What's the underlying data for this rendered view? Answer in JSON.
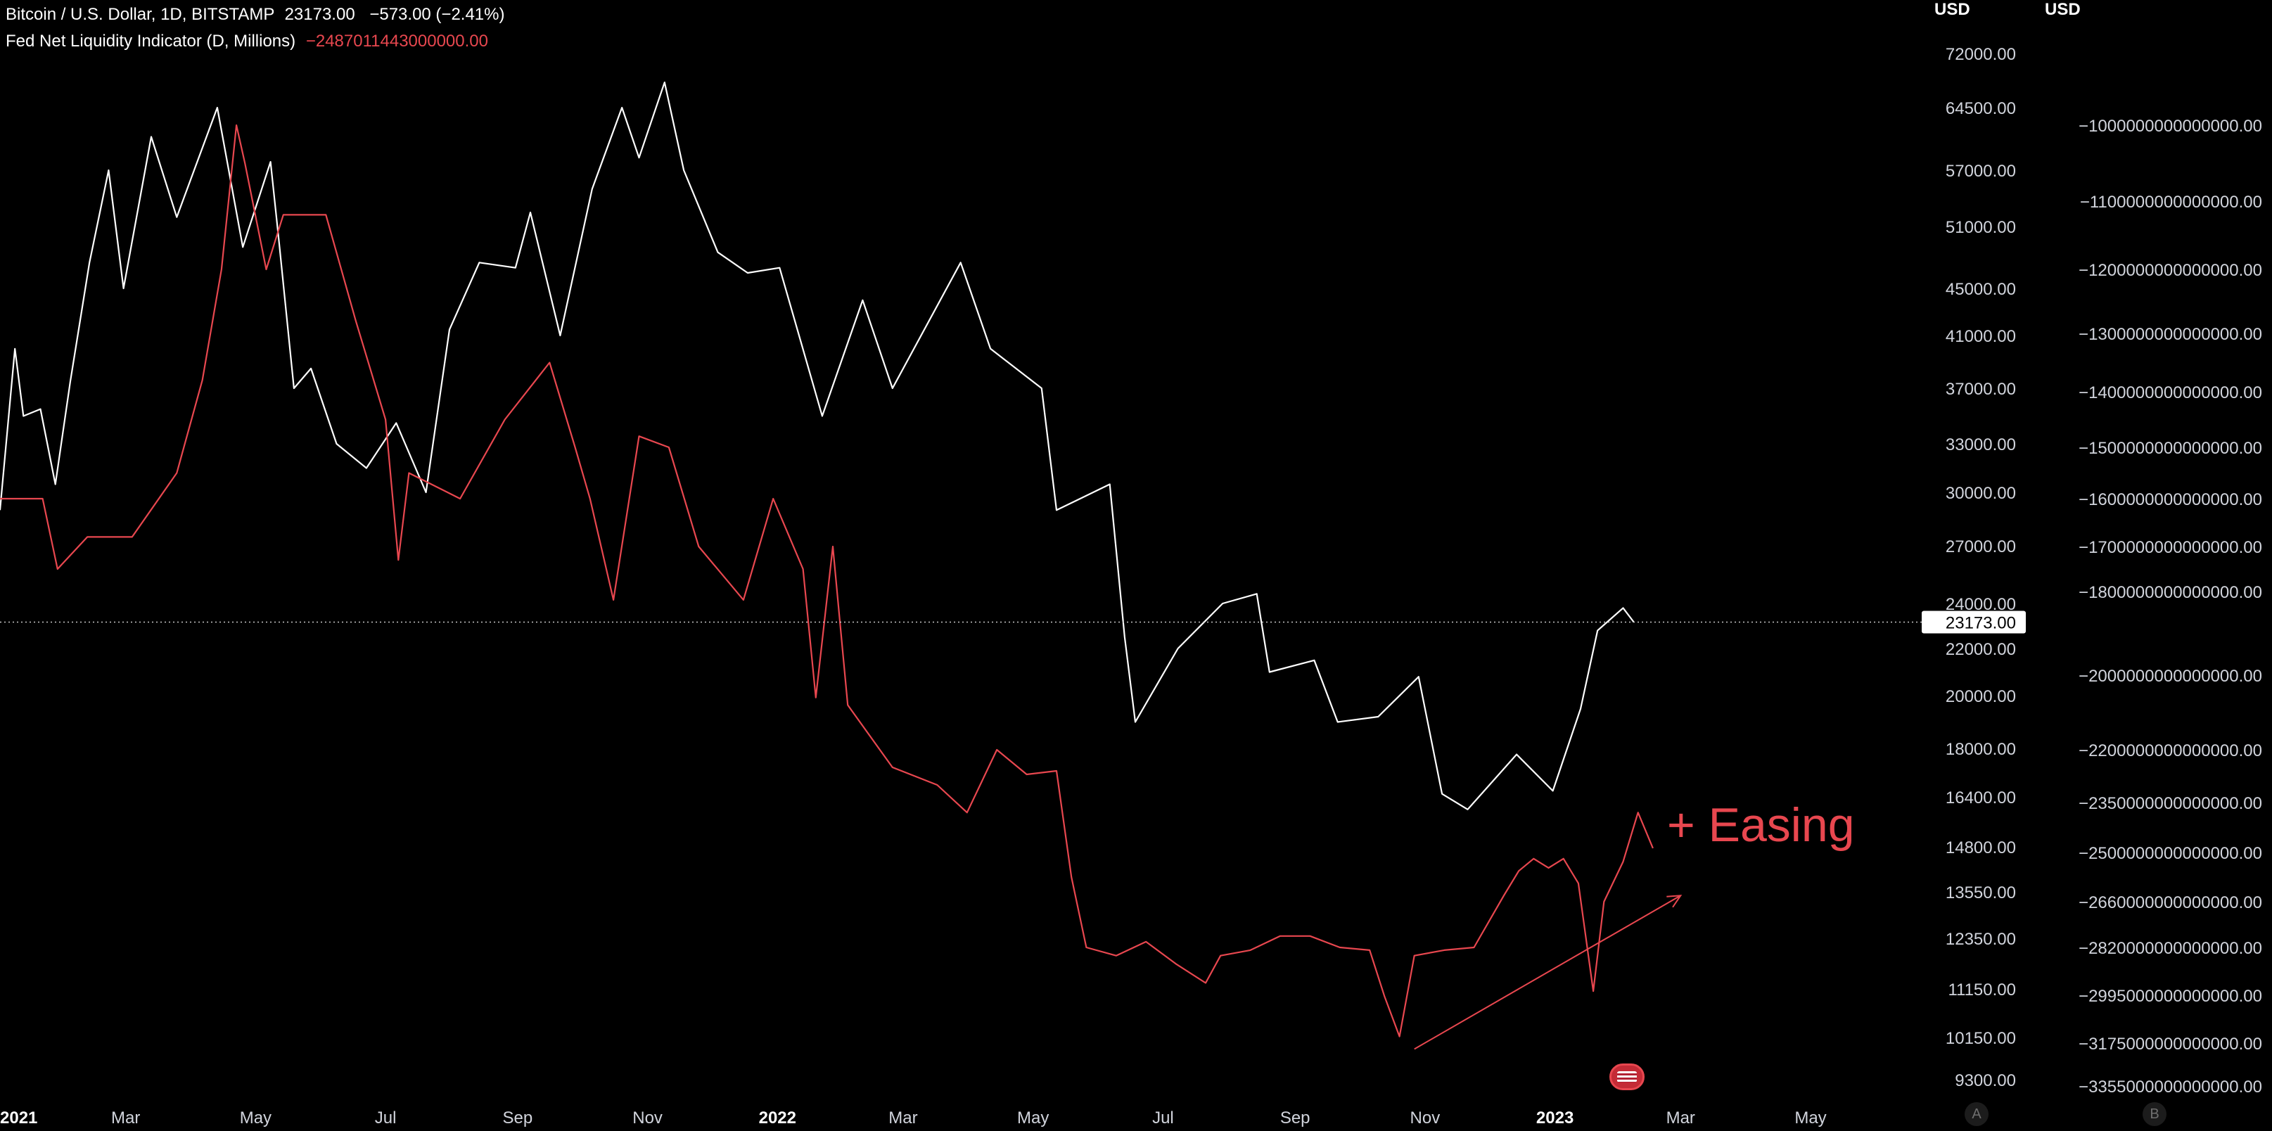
{
  "legend": {
    "btc_title": "Bitcoin / U.S. Dollar, 1D, BITSTAMP",
    "btc_price": "23173.00",
    "btc_change": "−573.00 (−2.41%)",
    "fnl_title": "Fed Net Liquidity Indicator (D, Millions)",
    "fnl_value": "−2487011443000000.00"
  },
  "axes": {
    "unit_a": "USD",
    "unit_b": "USD",
    "scale_a": "A",
    "scale_b": "B"
  },
  "annotation": {
    "text": "+ Easing"
  },
  "colors": {
    "btc": "#ffffff",
    "fnl": "#e8474f",
    "background": "#000000",
    "axis_text": "#d1d4dc"
  },
  "chart_data": {
    "type": "line",
    "x_axis": {
      "ticks": [
        "2021",
        "Mar",
        "May",
        "Jul",
        "Sep",
        "Nov",
        "2022",
        "Mar",
        "May",
        "Jul",
        "Sep",
        "Nov",
        "2023",
        "Mar",
        "May"
      ],
      "range": [
        "2021-01-01",
        "2023-05-31"
      ]
    },
    "price_axis_A": {
      "scale": "log",
      "unit": "USD",
      "ticks": [
        72000,
        64500,
        57000,
        51000,
        45000,
        41000,
        37000,
        33000,
        30000,
        27000,
        24000,
        22000,
        20000,
        18000,
        16400,
        14800,
        13550,
        12350,
        11150,
        10150,
        9300
      ],
      "last_price_label": 23173.0
    },
    "price_axis_B": {
      "unit": "USD",
      "ticks": [
        -1000000000000000,
        -1100000000000000,
        -1200000000000000,
        -1300000000000000,
        -1400000000000000,
        -1500000000000000,
        -1600000000000000,
        -1700000000000000,
        -1800000000000000,
        -2000000000000000,
        -2200000000000000,
        -2350000000000000,
        -2500000000000000,
        -2660000000000000,
        -2820000000000000,
        -2995000000000000,
        -3175000000000000,
        -3355000000000000
      ]
    },
    "series": [
      {
        "name": "Bitcoin / U.S. Dollar, 1D, BITSTAMP",
        "axis": "A",
        "color": "#ffffff",
        "points": [
          [
            "2021-01-01",
            29000
          ],
          [
            "2021-01-08",
            40000
          ],
          [
            "2021-01-12",
            35000
          ],
          [
            "2021-01-20",
            35500
          ],
          [
            "2021-01-27",
            30500
          ],
          [
            "2021-02-03",
            37500
          ],
          [
            "2021-02-12",
            47500
          ],
          [
            "2021-02-21",
            57000
          ],
          [
            "2021-02-28",
            45000
          ],
          [
            "2021-03-13",
            61000
          ],
          [
            "2021-03-25",
            52000
          ],
          [
            "2021-04-13",
            64500
          ],
          [
            "2021-04-25",
            49000
          ],
          [
            "2021-05-08",
            58000
          ],
          [
            "2021-05-12",
            49500
          ],
          [
            "2021-05-19",
            37000
          ],
          [
            "2021-05-27",
            38500
          ],
          [
            "2021-06-08",
            33000
          ],
          [
            "2021-06-22",
            31500
          ],
          [
            "2021-07-06",
            34500
          ],
          [
            "2021-07-20",
            30000
          ],
          [
            "2021-07-31",
            41500
          ],
          [
            "2021-08-14",
            47500
          ],
          [
            "2021-08-31",
            47000
          ],
          [
            "2021-09-07",
            52500
          ],
          [
            "2021-09-21",
            41000
          ],
          [
            "2021-10-06",
            55000
          ],
          [
            "2021-10-20",
            64500
          ],
          [
            "2021-10-28",
            58500
          ],
          [
            "2021-11-09",
            68000
          ],
          [
            "2021-11-18",
            57000
          ],
          [
            "2021-12-04",
            48500
          ],
          [
            "2021-12-18",
            46500
          ],
          [
            "2022-01-02",
            47000
          ],
          [
            "2022-01-22",
            35000
          ],
          [
            "2022-02-10",
            44000
          ],
          [
            "2022-02-24",
            37000
          ],
          [
            "2022-03-28",
            47500
          ],
          [
            "2022-04-11",
            40000
          ],
          [
            "2022-05-05",
            37000
          ],
          [
            "2022-05-12",
            29000
          ],
          [
            "2022-06-06",
            30500
          ],
          [
            "2022-06-13",
            22500
          ],
          [
            "2022-06-18",
            19000
          ],
          [
            "2022-07-08",
            22000
          ],
          [
            "2022-07-29",
            24000
          ],
          [
            "2022-08-14",
            24500
          ],
          [
            "2022-08-20",
            21000
          ],
          [
            "2022-09-10",
            21500
          ],
          [
            "2022-09-21",
            19000
          ],
          [
            "2022-10-10",
            19200
          ],
          [
            "2022-10-29",
            20800
          ],
          [
            "2022-11-09",
            16500
          ],
          [
            "2022-11-21",
            16000
          ],
          [
            "2022-12-14",
            17800
          ],
          [
            "2022-12-31",
            16600
          ],
          [
            "2023-01-13",
            19500
          ],
          [
            "2023-01-21",
            22800
          ],
          [
            "2023-02-02",
            23800
          ],
          [
            "2023-02-07",
            23173
          ]
        ]
      },
      {
        "name": "Fed Net Liquidity Indicator (D, Millions)",
        "axis": "B",
        "color": "#e8474f",
        "points": [
          [
            "2021-01-01",
            -1600000000000000
          ],
          [
            "2021-01-21",
            -1600000000000000
          ],
          [
            "2021-01-28",
            -1750000000000000
          ],
          [
            "2021-02-11",
            -1680000000000000
          ],
          [
            "2021-03-04",
            -1680000000000000
          ],
          [
            "2021-03-25",
            -1550000000000000
          ],
          [
            "2021-04-06",
            -1380000000000000
          ],
          [
            "2021-04-15",
            -1200000000000000
          ],
          [
            "2021-04-22",
            -1000000000000000
          ],
          [
            "2021-04-26",
            -1050000000000000
          ],
          [
            "2021-05-06",
            -1200000000000000
          ],
          [
            "2021-05-14",
            -1120000000000000
          ],
          [
            "2021-06-03",
            -1120000000000000
          ],
          [
            "2021-06-17",
            -1280000000000000
          ],
          [
            "2021-07-01",
            -1450000000000000
          ],
          [
            "2021-07-07",
            -1730000000000000
          ],
          [
            "2021-07-12",
            -1550000000000000
          ],
          [
            "2021-08-05",
            -1600000000000000
          ],
          [
            "2021-08-26",
            -1450000000000000
          ],
          [
            "2021-09-16",
            -1350000000000000
          ],
          [
            "2021-09-28",
            -1500000000000000
          ],
          [
            "2021-10-05",
            -1600000000000000
          ],
          [
            "2021-10-16",
            -1820000000000000
          ],
          [
            "2021-10-28",
            -1480000000000000
          ],
          [
            "2021-11-11",
            -1500000000000000
          ],
          [
            "2021-11-25",
            -1700000000000000
          ],
          [
            "2021-12-16",
            -1820000000000000
          ],
          [
            "2021-12-30",
            -1600000000000000
          ],
          [
            "2022-01-13",
            -1750000000000000
          ],
          [
            "2022-01-19",
            -2060000000000000
          ],
          [
            "2022-01-27",
            -1700000000000000
          ],
          [
            "2022-02-03",
            -2080000000000000
          ],
          [
            "2022-02-24",
            -2250000000000000
          ],
          [
            "2022-03-17",
            -2300000000000000
          ],
          [
            "2022-03-31",
            -2380000000000000
          ],
          [
            "2022-04-14",
            -2200000000000000
          ],
          [
            "2022-04-28",
            -2270000000000000
          ],
          [
            "2022-05-12",
            -2260000000000000
          ],
          [
            "2022-05-19",
            -2580000000000000
          ],
          [
            "2022-05-26",
            -2820000000000000
          ],
          [
            "2022-06-09",
            -2850000000000000
          ],
          [
            "2022-06-23",
            -2800000000000000
          ],
          [
            "2022-07-07",
            -2880000000000000
          ],
          [
            "2022-07-21",
            -2950000000000000
          ],
          [
            "2022-07-28",
            -2850000000000000
          ],
          [
            "2022-08-11",
            -2830000000000000
          ],
          [
            "2022-08-25",
            -2780000000000000
          ],
          [
            "2022-09-08",
            -2780000000000000
          ],
          [
            "2022-09-22",
            -2820000000000000
          ],
          [
            "2022-10-06",
            -2830000000000000
          ],
          [
            "2022-10-13",
            -3000000000000000
          ],
          [
            "2022-10-20",
            -3150000000000000
          ],
          [
            "2022-10-27",
            -2850000000000000
          ],
          [
            "2022-11-10",
            -2830000000000000
          ],
          [
            "2022-11-24",
            -2820000000000000
          ],
          [
            "2022-12-08",
            -2640000000000000
          ],
          [
            "2022-12-15",
            -2560000000000000
          ],
          [
            "2022-12-22",
            -2520000000000000
          ],
          [
            "2022-12-29",
            -2550000000000000
          ],
          [
            "2023-01-05",
            -2520000000000000
          ],
          [
            "2023-01-12",
            -2600000000000000
          ],
          [
            "2023-01-19",
            -2980000000000000
          ],
          [
            "2023-01-24",
            -2660000000000000
          ],
          [
            "2023-02-02",
            -2530000000000000
          ],
          [
            "2023-02-09",
            -2380000000000000
          ],
          [
            "2023-02-16",
            -2487011443000000
          ]
        ]
      }
    ],
    "annotations": [
      {
        "type": "text",
        "text": "+ Easing",
        "color": "#e8474f"
      },
      {
        "type": "arrow",
        "from": [
          "2022-10-27",
          -3200000000000000
        ],
        "to": [
          "2023-03-01",
          -2640000000000000
        ],
        "color": "#e8474f"
      }
    ],
    "grid": false,
    "legend": "top-left"
  }
}
